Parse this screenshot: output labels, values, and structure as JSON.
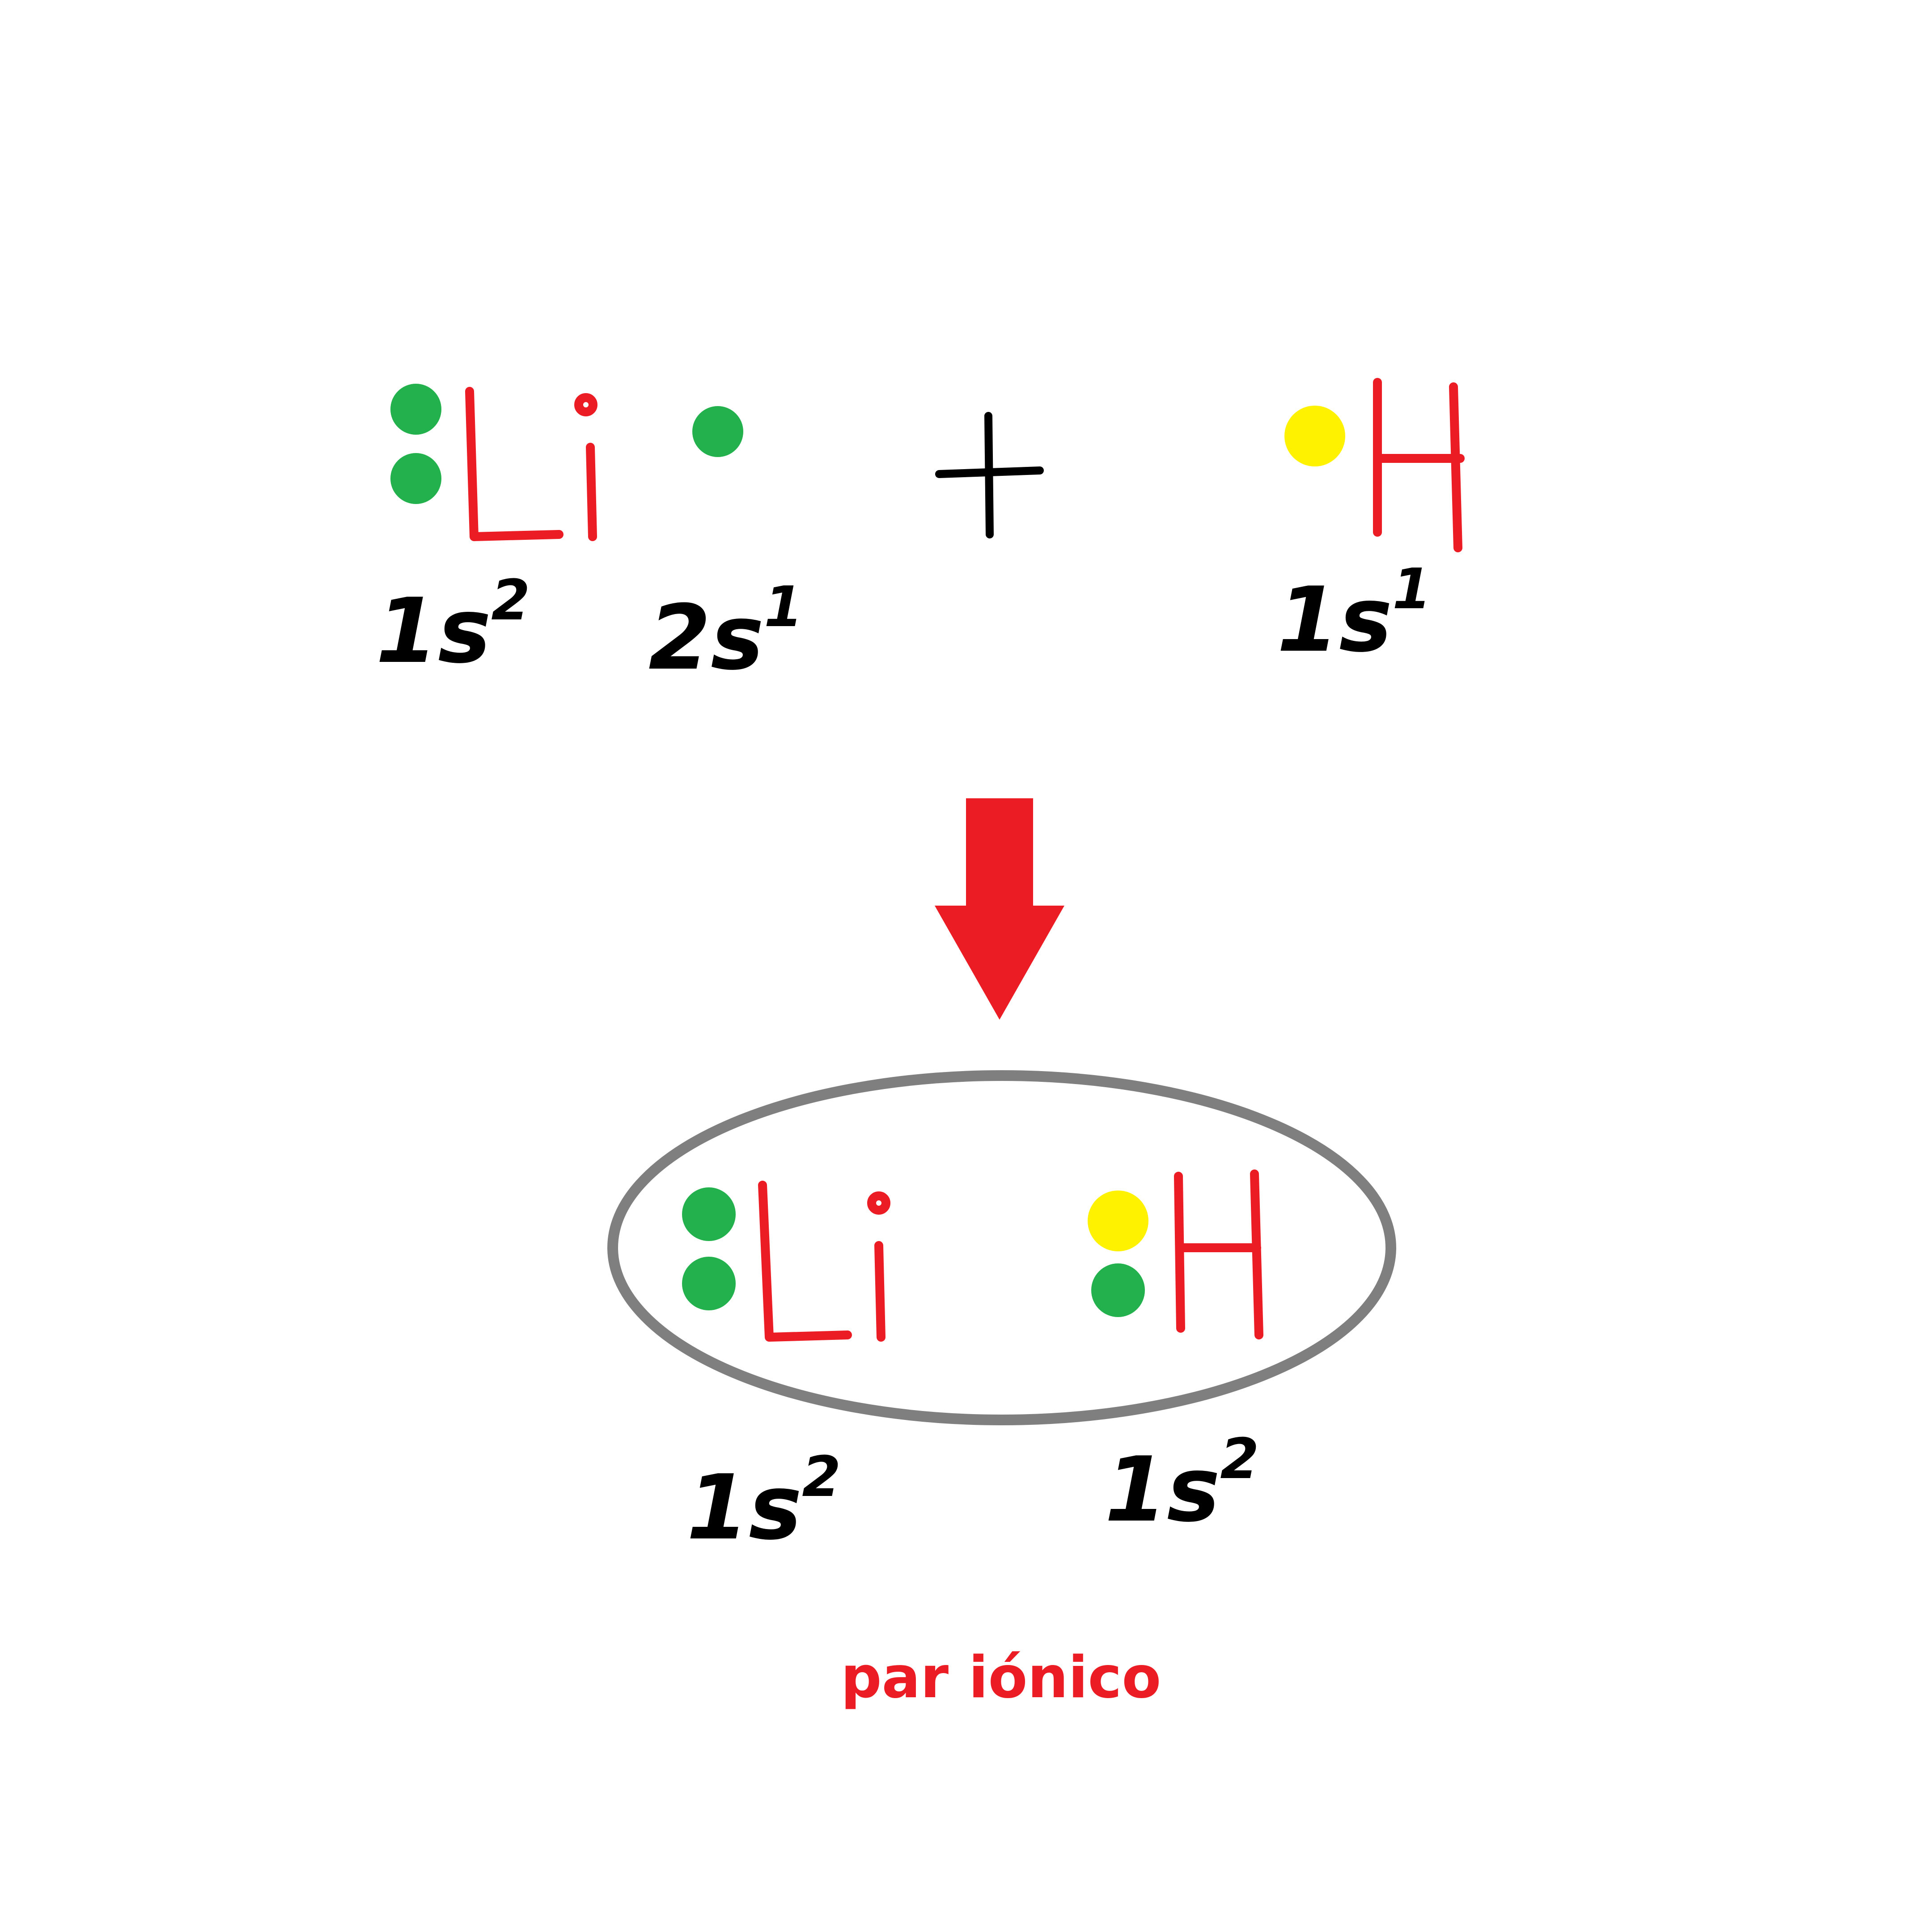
{
  "colors": {
    "symbol": "#ec1c24",
    "inner_electron": "#22b14c",
    "hydrogen_electron": "#fff200",
    "ink": "#000000",
    "arrow": "#ec1c24",
    "ellipse": "#7f7f7f",
    "caption": "#ec1c24"
  },
  "reactants": {
    "lithium": {
      "symbol": "Li",
      "inner_config": "1s",
      "inner_exp": "2",
      "valence_config": "2s",
      "valence_exp": "1"
    },
    "plus": "+",
    "hydrogen": {
      "symbol": "H",
      "config": "1s",
      "exp": "1"
    }
  },
  "product": {
    "lithium": {
      "symbol": "Li",
      "config": "1s",
      "exp": "2"
    },
    "hydrogen": {
      "symbol": "H",
      "config": "1s",
      "exp": "2"
    }
  },
  "caption": "par iónico"
}
